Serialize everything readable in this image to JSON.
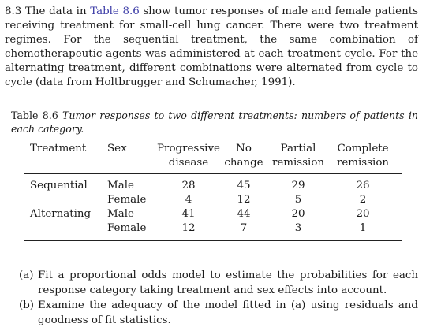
{
  "problem": {
    "number": "8.3",
    "text_before_link": "The data in ",
    "link_text": "Table 8.6",
    "text_after_link": " show tumor responses of male and female patients receiving treatment for small-cell lung cancer. There were two treatment regimes. For the sequential treatment, the same combination of chemotherapeutic agents was administered at each treatment cycle. For the alternating treatment, different combinations were alternated from cycle to cycle (data from Holtbrugger and Schumacher, 1991)."
  },
  "table": {
    "caption_label": "Table 8.6",
    "caption_text": "Tumor responses to two different treatments: numbers of patients in each category.",
    "headers": [
      [
        "Treatment",
        ""
      ],
      [
        "Sex",
        ""
      ],
      [
        "Progressive",
        "disease"
      ],
      [
        "No",
        "change"
      ],
      [
        "Partial",
        "remission"
      ],
      [
        "Complete",
        "remission"
      ]
    ],
    "rows": [
      [
        "Sequential",
        "Male",
        "28",
        "45",
        "29",
        "26"
      ],
      [
        "",
        "Female",
        "4",
        "12",
        "5",
        "2"
      ],
      [
        "Alternating",
        "Male",
        "41",
        "44",
        "20",
        "20"
      ],
      [
        "",
        "Female",
        "12",
        "7",
        "3",
        "1"
      ]
    ]
  },
  "parts": [
    {
      "label": "(a)",
      "text": "Fit a proportional odds model to estimate the probabilities for each response category taking treatment and sex effects into account."
    },
    {
      "label": "(b)",
      "text": "Examine the adequacy of the model fitted in (a) using residuals and goodness of fit statistics."
    }
  ]
}
